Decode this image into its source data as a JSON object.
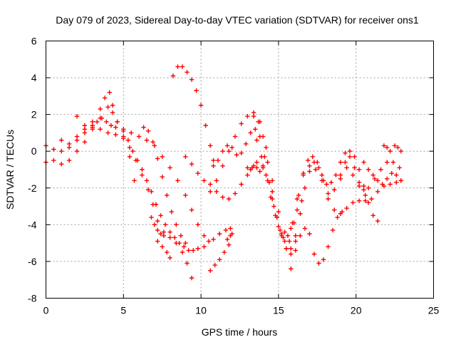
{
  "chart_data": {
    "type": "scatter",
    "title": "Day 079 of 2023, Sidereal Day-to-day VTEC variation (SDTVAR) for receiver ons1",
    "xlabel": "GPS time / hours",
    "ylabel": "SDTVAR / TECUs",
    "xlim": [
      0,
      25
    ],
    "ylim": [
      -8,
      6
    ],
    "xticks": [
      0,
      5,
      10,
      15,
      20,
      25
    ],
    "yticks": [
      -8,
      -6,
      -4,
      -2,
      0,
      2,
      4,
      6
    ],
    "grid": true,
    "marker": "plus",
    "color": "#ff0000",
    "series": [
      {
        "x": [
          0.0,
          0.5,
          1.0,
          1.5,
          2.0,
          2.5,
          3.0,
          3.3,
          3.6,
          3.9,
          4.2,
          4.5,
          5.0,
          5.5,
          6.0,
          6.5,
          7.0,
          7.5,
          8.0,
          8.5,
          9.0,
          9.4,
          9.8,
          10.2,
          10.5,
          10.8,
          11.2,
          11.6,
          11.9
        ],
        "y": [
          0.3,
          0.1,
          0.0,
          0.2,
          0.6,
          1.0,
          1.4,
          1.6,
          1.8,
          1.6,
          1.4,
          1.3,
          1.2,
          1.0,
          0.8,
          0.6,
          0.3,
          -0.3,
          -0.9,
          -1.6,
          -2.4,
          -3.2,
          -4.0,
          -4.6,
          -4.9,
          -4.8,
          -4.5,
          -4.3,
          -4.2
        ]
      },
      {
        "x": [
          0.0,
          0.5,
          1.0,
          1.5,
          2.0,
          2.5,
          3.0,
          3.5,
          4.0,
          4.3,
          4.6,
          5.0,
          5.3,
          5.6,
          5.9,
          6.2,
          6.5,
          6.8,
          7.1,
          7.4,
          7.7,
          8.0,
          8.3,
          8.6,
          8.9,
          9.2,
          9.5,
          9.8,
          10.2
        ],
        "y": [
          -0.6,
          -0.5,
          -0.7,
          -0.5,
          0.0,
          0.5,
          1.2,
          1.8,
          2.4,
          2.1,
          1.6,
          1.1,
          0.6,
          0.0,
          -0.5,
          -1.0,
          -1.6,
          -2.2,
          -2.9,
          -3.5,
          -4.0,
          -4.4,
          -4.7,
          -5.0,
          -5.2,
          -5.4,
          -5.4,
          -5.3,
          -5.2
        ]
      },
      {
        "x": [
          1.0,
          1.5,
          2.0,
          2.5,
          3.0,
          3.5,
          4.0,
          4.5,
          5.0,
          5.4,
          5.8,
          6.2,
          6.6,
          6.9,
          7.2,
          7.6,
          8.0,
          8.4,
          8.8,
          9.1,
          9.4
        ],
        "y": [
          0.6,
          0.4,
          0.8,
          1.2,
          1.3,
          1.2,
          1.0,
          0.9,
          0.8,
          0.2,
          -0.5,
          -1.3,
          -2.1,
          -2.9,
          -3.8,
          -4.4,
          -4.7,
          -5.0,
          -5.5,
          -6.1,
          -6.9
        ]
      },
      {
        "x": [
          2.0,
          2.5,
          3.0,
          3.5,
          3.8,
          4.1,
          4.3,
          4.6,
          5.0,
          5.4,
          5.7
        ],
        "y": [
          1.9,
          1.4,
          1.6,
          2.3,
          2.9,
          3.2,
          2.5,
          1.6,
          0.7,
          -0.3,
          -1.6
        ]
      },
      {
        "x": [
          6.3,
          6.6,
          6.9,
          7.2,
          7.5,
          7.8,
          8.1,
          8.4,
          8.7,
          9.0
        ],
        "y": [
          1.3,
          1.1,
          0.5,
          -0.4,
          -1.4,
          -2.4,
          -3.3,
          -4.0,
          -4.6,
          -5.0
        ]
      },
      {
        "x": [
          8.2,
          8.5,
          8.8,
          9.1,
          9.4,
          9.7,
          10.0,
          10.3,
          10.6,
          10.8
        ],
        "y": [
          4.1,
          4.6,
          4.6,
          4.3,
          3.9,
          3.3,
          2.5,
          1.4,
          0.3,
          -0.5
        ]
      },
      {
        "x": [
          6.8,
          7.0,
          7.2,
          7.4,
          7.6
        ],
        "y": [
          -3.6,
          -4.0,
          -4.3,
          -4.5,
          -4.6
        ]
      },
      {
        "x": [
          7.2,
          7.5,
          7.8,
          8.0
        ],
        "y": [
          -4.9,
          -5.2,
          -5.5,
          -5.8
        ]
      },
      {
        "x": [
          9.0,
          9.4,
          9.8,
          10.2,
          10.6,
          11.0,
          11.4,
          11.8,
          12.2,
          12.6,
          13.0,
          13.3,
          13.6,
          14.0,
          14.3,
          14.6,
          14.9,
          15.2,
          15.5,
          15.8,
          16.1
        ],
        "y": [
          -0.3,
          -0.7,
          -1.2,
          -1.6,
          -1.8,
          -2.2,
          -2.5,
          -2.6,
          -2.3,
          -1.8,
          -1.3,
          -0.9,
          -0.6,
          -0.8,
          -1.6,
          -2.6,
          -3.6,
          -4.5,
          -5.3,
          -5.3,
          -4.6
        ]
      },
      {
        "x": [
          10.8,
          11.1,
          11.4,
          11.7,
          12.0,
          12.3,
          12.6,
          12.9,
          13.2,
          13.5,
          13.8,
          14.1,
          14.4,
          14.7,
          15.0,
          15.3,
          15.6,
          15.9,
          16.2,
          16.5
        ],
        "y": [
          -0.8,
          -0.5,
          0.0,
          0.3,
          0.2,
          -0.2,
          -0.1,
          0.4,
          1.0,
          1.2,
          0.8,
          -0.3,
          -1.7,
          -3.0,
          -4.1,
          -4.7,
          -4.6,
          -3.9,
          -3.2,
          -2.7
        ]
      },
      {
        "x": [
          10.6,
          11.0,
          11.4,
          11.8,
          12.2,
          12.6,
          13.0,
          13.4,
          13.8,
          14.2,
          14.6,
          15.0,
          15.4,
          15.8,
          16.2,
          16.6,
          17.0,
          17.4,
          17.8,
          18.2,
          18.6,
          19.0,
          19.4,
          19.8,
          20.2,
          20.6
        ],
        "y": [
          -2.2,
          -1.6,
          -0.8,
          0.0,
          0.8,
          1.5,
          1.9,
          2.1,
          1.6,
          0.2,
          -1.6,
          -3.3,
          -4.4,
          -4.2,
          -2.6,
          -1.3,
          -0.8,
          -1.0,
          -1.6,
          -2.6,
          -3.2,
          -3.4,
          -3.1,
          -2.8,
          -2.7,
          -2.7
        ]
      },
      {
        "x": [
          10.6,
          10.9,
          11.2,
          11.5,
          11.8
        ],
        "y": [
          -6.5,
          -6.2,
          -5.9,
          -5.5,
          -5.1
        ]
      },
      {
        "x": [
          11.7,
          11.9,
          12.0
        ],
        "y": [
          -4.8,
          -4.6,
          -4.5
        ]
      },
      {
        "x": [
          13.0,
          13.2,
          13.4,
          13.6,
          13.8,
          14.0
        ],
        "y": [
          -0.9,
          -1.0,
          -0.8,
          -0.9,
          -1.1,
          -0.9
        ]
      },
      {
        "x": [
          13.4,
          13.7,
          14.0,
          14.3,
          14.6,
          14.9,
          15.2,
          15.5,
          15.8,
          16.1,
          16.4,
          16.7,
          17.0,
          17.3,
          17.6,
          17.9,
          18.2,
          18.6,
          19.0,
          19.4,
          19.8,
          20.2,
          20.6,
          21.0,
          21.4,
          21.8,
          22.2,
          22.6,
          22.9
        ],
        "y": [
          1.9,
          1.6,
          0.8,
          -0.6,
          -2.2,
          -3.6,
          -4.6,
          -5.3,
          -5.6,
          -4.9,
          -3.4,
          -2.0,
          -1.1,
          -0.6,
          -0.9,
          -1.6,
          -2.3,
          -2.1,
          -1.5,
          -0.9,
          -1.3,
          -1.9,
          -2.4,
          -2.6,
          -2.2,
          -1.9,
          -1.8,
          -1.7,
          -1.6
        ]
      },
      {
        "x": [
          13.6,
          13.9,
          14.2,
          14.5,
          14.8,
          15.1,
          15.4,
          15.7,
          16.0,
          16.3,
          16.6,
          16.9,
          17.2,
          17.5,
          17.8,
          18.1,
          18.4,
          18.7,
          19.0,
          19.3,
          19.6,
          19.9,
          20.2,
          20.5,
          20.8,
          21.2,
          21.6,
          22.0,
          22.4,
          22.8
        ],
        "y": [
          0.6,
          -0.3,
          -1.3,
          -2.5,
          -3.5,
          -4.3,
          -4.9,
          -4.9,
          -3.9,
          -2.4,
          -1.2,
          -0.5,
          -0.3,
          -0.6,
          -1.3,
          -1.8,
          -1.7,
          -1.3,
          -0.6,
          -0.1,
          -0.3,
          -0.9,
          -1.7,
          -2.1,
          -2.0,
          -1.5,
          -1.0,
          -0.6,
          -0.6,
          -0.9
        ]
      },
      {
        "x": [
          15.8,
          16.1,
          16.4,
          16.7,
          17.0,
          17.3,
          17.6,
          17.9,
          18.2,
          18.5,
          18.8,
          19.1
        ],
        "y": [
          -6.4,
          -5.4,
          -4.6,
          -4.2,
          -4.5,
          -5.6,
          -6.1,
          -5.9,
          -5.2,
          -4.3,
          -3.6,
          -3.3
        ]
      },
      {
        "x": [
          19.0,
          19.3,
          19.6,
          19.9,
          20.2,
          20.5,
          20.8,
          21.1,
          21.4
        ],
        "y": [
          -1.3,
          -0.6,
          0.0,
          -0.3,
          -1.0,
          -1.9,
          -2.8,
          -3.5,
          -3.8
        ]
      },
      {
        "x": [
          20.5,
          20.8,
          21.1,
          21.4,
          21.7,
          22.0,
          22.3,
          22.6,
          22.9
        ],
        "y": [
          -0.6,
          -1.0,
          -1.3,
          -1.6,
          -1.8,
          -1.5,
          -1.2,
          -1.3,
          -1.6
        ]
      },
      {
        "x": [
          21.8,
          22.0,
          22.2
        ],
        "y": [
          0.3,
          0.2,
          0.0
        ]
      },
      {
        "x": [
          22.5,
          22.7,
          22.9
        ],
        "y": [
          0.3,
          0.2,
          0.0
        ]
      }
    ]
  }
}
